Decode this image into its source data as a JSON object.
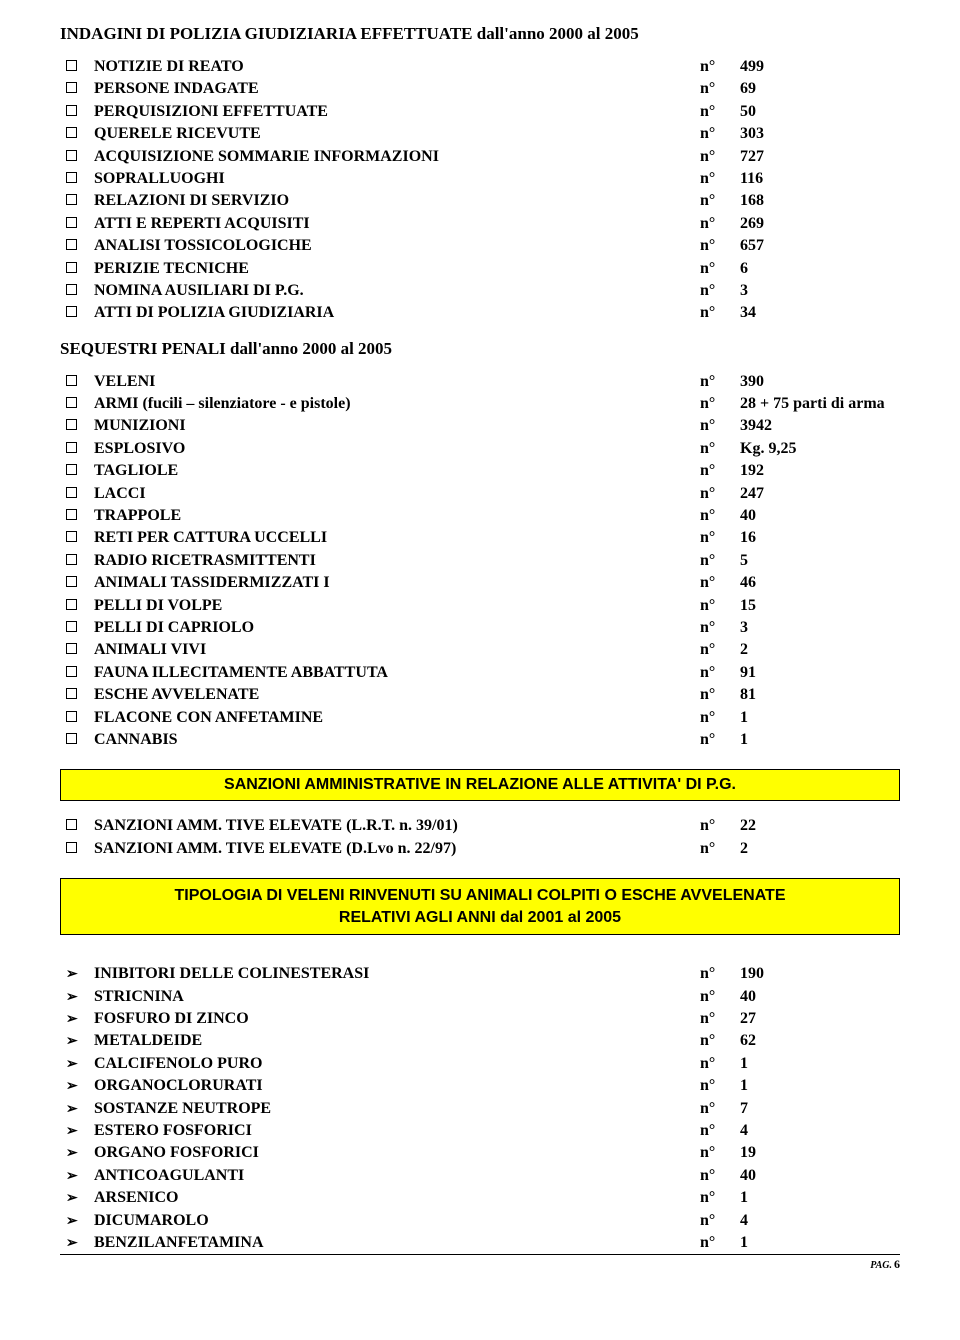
{
  "section1": {
    "title": "INDAGINI DI POLIZIA GIUDIZIARIA EFFETTUATE  dall'anno  2000  al  2005",
    "rows": [
      {
        "label": "NOTIZIE DI REATO",
        "mid": "n°",
        "val": "499"
      },
      {
        "label": "PERSONE INDAGATE",
        "mid": "n°",
        "val": "69"
      },
      {
        "label": "PERQUISIZIONI EFFETTUATE",
        "mid": "n°",
        "val": "50"
      },
      {
        "label": "QUERELE RICEVUTE",
        "mid": "n°",
        "val": "303"
      },
      {
        "label": "ACQUISIZIONE SOMMARIE INFORMAZIONI",
        "mid": "n°",
        "val": "727"
      },
      {
        "label": "SOPRALLUOGHI",
        "mid": "n°",
        "val": "  116"
      },
      {
        "label": "RELAZIONI DI SERVIZIO",
        "mid": "n°",
        "val": "  168"
      },
      {
        "label": "ATTI E REPERTI  ACQUISITI",
        "mid": "n°",
        "val": "  269"
      },
      {
        "label": "ANALISI TOSSICOLOGICHE",
        "mid": "n°",
        "val": "  657"
      },
      {
        "label": "PERIZIE TECNICHE",
        "mid": "n°",
        "val": "  6"
      },
      {
        "label": "NOMINA AUSILIARI DI P.G.",
        "mid": "n°",
        "val": "  3"
      },
      {
        "label": "ATTI DI POLIZIA GIUDIZIARIA",
        "mid": "n°",
        "val": "  34"
      }
    ]
  },
  "section2": {
    "title": "SEQUESTRI  PENALI     dall'anno  2000  al  2005",
    "rows": [
      {
        "label": "VELENI",
        "mid": "n°",
        "val": "390"
      },
      {
        "label": "ARMI (fucili – silenziatore - e pistole)",
        "mid": "n°",
        "val": "28 + 75 parti di arma"
      },
      {
        "label": "MUNIZIONI",
        "mid": "n°",
        "val": "3942"
      },
      {
        "label": "ESPLOSIVO",
        "mid": "n°",
        "val": "Kg. 9,25"
      },
      {
        "label": "TAGLIOLE",
        "mid": "n°",
        "val": "192"
      },
      {
        "label": "LACCI",
        "mid": "n°",
        "val": "247"
      },
      {
        "label": "TRAPPOLE",
        "mid": "n°",
        "val": "40"
      },
      {
        "label": "RETI PER CATTURA UCCELLI",
        "mid": "n°",
        "val": "16"
      },
      {
        "label": "RADIO RICETRASMITTENTI",
        "mid": "n°",
        "val": "5"
      },
      {
        "label": "ANIMALI TASSIDERMIZZATI                        I",
        "mid": "n°",
        "val": "46"
      },
      {
        "label": "PELLI DI VOLPE",
        "mid": "n°",
        "val": "15"
      },
      {
        "label": "PELLI DI CAPRIOLO",
        "mid": "n°",
        "val": "3"
      },
      {
        "label": "ANIMALI VIVI",
        "mid": "n°",
        "val": "2"
      },
      {
        "label": "FAUNA ILLECITAMENTE ABBATTUTA",
        "mid": "n°",
        "val": "91"
      },
      {
        "label": "ESCHE AVVELENATE",
        "mid": "n°",
        "val": "81"
      },
      {
        "label": "FLACONE CON ANFETAMINE",
        "mid": "n°",
        "val": "1"
      },
      {
        "label": "CANNABIS",
        "mid": "n°",
        "val": "1"
      }
    ]
  },
  "banner1": "SANZIONI AMMINISTRATIVE IN RELAZIONE ALLE ATTIVITA' DI P.G.",
  "section3": {
    "rows": [
      {
        "label": "SANZIONI AMM. TIVE ELEVATE (L.R.T. n. 39/01)",
        "mid": "n°",
        "val": "22"
      },
      {
        "label": "SANZIONI AMM. TIVE ELEVATE (D.Lvo  n. 22/97)",
        "mid": "n°",
        "val": "2"
      }
    ]
  },
  "banner2_line1": "TIPOLOGIA DI VELENI RINVENUTI SU ANIMALI COLPITI O ESCHE AVVELENATE",
  "banner2_line2": "RELATIVI AGLI ANNI dal  2001 al 2005",
  "section4": {
    "rows": [
      {
        "label": "INIBITORI DELLE COLINESTERASI",
        "mid": "n°",
        "val": "190"
      },
      {
        "label": "STRICNINA",
        "mid": "n°",
        "val": "40"
      },
      {
        "label": "FOSFURO DI ZINCO",
        "mid": "n°",
        "val": "27"
      },
      {
        "label": "METALDEIDE",
        "mid": "n°",
        "val": "62"
      },
      {
        "label": "CALCIFENOLO PURO",
        "mid": "n°",
        "val": "1"
      },
      {
        "label": "ORGANOCLORURATI",
        "mid": "n°",
        "val": "1"
      },
      {
        "label": "SOSTANZE NEUTROPE",
        "mid": "n°",
        "val": "7"
      },
      {
        "label": "ESTERO FOSFORICI",
        "mid": "n°",
        "val": "4"
      },
      {
        "label": "ORGANO FOSFORICI",
        "mid": "n°",
        "val": "19"
      },
      {
        "label": "ANTICOAGULANTI",
        "mid": "n°",
        "val": "40"
      },
      {
        "label": "ARSENICO",
        "mid": "n°",
        "val": "1"
      },
      {
        "label": "DICUMAROLO",
        "mid": "n°",
        "val": "4"
      },
      {
        "label": "BENZILANFETAMINA",
        "mid": "n°",
        "val": "1"
      }
    ]
  },
  "footer": {
    "pag": "PAG.",
    "num": "6"
  }
}
